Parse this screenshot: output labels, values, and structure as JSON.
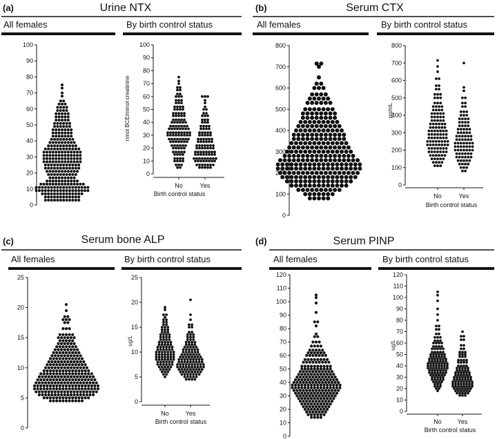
{
  "figure": {
    "panels": [
      {
        "letter": "(a)",
        "title": "Urine NTX",
        "left_header": "All females",
        "right_header": "By birth control status",
        "left_yticks": [
          "0",
          "10",
          "20",
          "30",
          "40",
          "50",
          "60",
          "70",
          "80",
          "90",
          "100"
        ],
        "right_yticks": [
          "0",
          "10",
          "20",
          "30",
          "40",
          "50",
          "60",
          "70",
          "80",
          "90",
          "100"
        ],
        "ylabel": "nmol BCE/mmol creatinine",
        "xlabel": "Birth control status",
        "categories": [
          "No",
          "Yes"
        ]
      },
      {
        "letter": "(b)",
        "title": "Serum CTX",
        "left_header": "All females",
        "right_header": "By birth control status",
        "left_yticks": [
          "0",
          "100",
          "200",
          "300",
          "400",
          "500",
          "600",
          "700",
          "800"
        ],
        "right_yticks": [
          "0",
          "100",
          "200",
          "300",
          "400",
          "500",
          "600",
          "700",
          "800"
        ],
        "ylabel": "pg/mL",
        "xlabel": "Birth control status",
        "categories": [
          "No",
          "Yes"
        ]
      },
      {
        "letter": "(c)",
        "title": "Serum bone ALP",
        "left_header": "All females",
        "right_header": "By birth control status",
        "left_yticks": [
          "0",
          "5",
          "10",
          "15",
          "20",
          "25"
        ],
        "right_yticks": [
          "0",
          "5",
          "10",
          "15",
          "20",
          "25"
        ],
        "ylabel": "ug/L",
        "xlabel": "Birth control status",
        "categories": [
          "No",
          "Yes"
        ]
      },
      {
        "letter": "(d)",
        "title": "Serum PINP",
        "left_header": "All females",
        "right_header": "By birth control status",
        "left_yticks": [
          "0",
          "10",
          "20",
          "30",
          "40",
          "50",
          "60",
          "70",
          "80",
          "90",
          "100",
          "110",
          "120"
        ],
        "right_yticks": [
          "0",
          "10",
          "20",
          "30",
          "40",
          "50",
          "60",
          "70",
          "80",
          "90",
          "100",
          "110",
          "120"
        ],
        "ylabel": "ug/L",
        "xlabel": "Birth control status",
        "categories": [
          "No",
          "Yes"
        ]
      }
    ]
  },
  "chart_data": [
    {
      "type": "scatter",
      "title": "Urine NTX",
      "subtitle": "All females",
      "ylabel": "",
      "ylim": [
        0,
        100
      ],
      "series": [
        {
          "values": [
            75,
            73,
            68,
            65,
            63,
            61,
            59,
            57,
            55,
            53,
            51,
            49,
            47,
            45,
            43,
            41,
            39,
            37,
            35,
            33,
            31,
            29,
            27,
            25,
            23,
            21,
            19,
            17,
            15,
            13,
            11,
            9,
            7,
            5,
            3
          ]
        }
      ],
      "distribution": {
        "bins": [
          75,
          73,
          70,
          68,
          65,
          63,
          61,
          59,
          57,
          55,
          53,
          51,
          49,
          47,
          45,
          43,
          41,
          39,
          37,
          35,
          33,
          31,
          29,
          27,
          25,
          23,
          21,
          19,
          17,
          15,
          13,
          11,
          9,
          7,
          5,
          3
        ],
        "counts": [
          1,
          1,
          1,
          1,
          2,
          3,
          4,
          4,
          5,
          5,
          5,
          6,
          6,
          7,
          7,
          7,
          8,
          9,
          10,
          12,
          13,
          13,
          13,
          13,
          12,
          12,
          11,
          10,
          9,
          11,
          15,
          18,
          18,
          14,
          12,
          12
        ]
      }
    },
    {
      "type": "scatter",
      "title": "Urine NTX",
      "subtitle": "By birth control status",
      "xlabel": "Birth control status",
      "ylabel": "nmol BCE/mmol creatinine",
      "ylim": [
        0,
        100
      ],
      "categories": [
        "No",
        "Yes"
      ],
      "distribution": [
        {
          "category": "No",
          "bins": [
            75,
            72,
            70,
            67,
            65,
            62,
            60,
            57,
            55,
            52,
            50,
            47,
            45,
            42,
            40,
            37,
            35,
            32,
            30,
            27,
            25,
            22,
            20,
            17,
            15,
            12,
            10,
            7,
            5
          ],
          "counts": [
            1,
            1,
            1,
            2,
            2,
            2,
            3,
            3,
            3,
            4,
            4,
            5,
            5,
            5,
            6,
            7,
            8,
            9,
            9,
            8,
            7,
            6,
            5,
            5,
            4,
            4,
            4,
            3,
            2
          ]
        },
        {
          "category": "Yes",
          "bins": [
            60,
            57,
            55,
            52,
            50,
            47,
            45,
            42,
            40,
            37,
            35,
            32,
            30,
            27,
            25,
            22,
            20,
            17,
            15,
            12,
            10,
            7,
            5
          ],
          "counts": [
            3,
            1,
            1,
            1,
            2,
            2,
            3,
            3,
            3,
            4,
            4,
            5,
            5,
            6,
            6,
            7,
            7,
            8,
            8,
            9,
            8,
            7,
            5
          ]
        }
      ]
    },
    {
      "type": "scatter",
      "title": "Serum CTX",
      "subtitle": "All females",
      "ylabel": "",
      "ylim": [
        0,
        800
      ],
      "distribution": {
        "bins": [
          715,
          700,
          650,
          620,
          600,
          570,
          550,
          530,
          500,
          480,
          460,
          440,
          420,
          400,
          380,
          360,
          340,
          320,
          300,
          280,
          260,
          240,
          220,
          200,
          180,
          160,
          140,
          120,
          100,
          80
        ],
        "counts": [
          2,
          1,
          1,
          2,
          3,
          4,
          5,
          6,
          7,
          8,
          8,
          9,
          10,
          11,
          12,
          12,
          13,
          14,
          15,
          16,
          18,
          19,
          19,
          18,
          17,
          15,
          13,
          10,
          7,
          5
        ]
      }
    },
    {
      "type": "scatter",
      "title": "Serum CTX",
      "subtitle": "By birth control status",
      "xlabel": "Birth control status",
      "ylabel": "pg/mL",
      "ylim": [
        0,
        800
      ],
      "categories": [
        "No",
        "Yes"
      ],
      "distribution": [
        {
          "category": "No",
          "bins": [
            715,
            680,
            650,
            610,
            570,
            550,
            520,
            500,
            470,
            450,
            430,
            410,
            390,
            370,
            350,
            330,
            310,
            290,
            270,
            250,
            230,
            210,
            190,
            170,
            150,
            130,
            110
          ],
          "counts": [
            1,
            1,
            1,
            2,
            2,
            2,
            3,
            3,
            3,
            4,
            4,
            5,
            5,
            5,
            6,
            6,
            7,
            7,
            7,
            8,
            8,
            7,
            7,
            6,
            5,
            4,
            3
          ]
        },
        {
          "category": "Yes",
          "bins": [
            700,
            560,
            540,
            500,
            470,
            450,
            420,
            400,
            380,
            360,
            340,
            320,
            300,
            280,
            260,
            240,
            220,
            200,
            180,
            160,
            140,
            120,
            100,
            80
          ],
          "counts": [
            1,
            1,
            1,
            2,
            2,
            2,
            3,
            3,
            4,
            4,
            4,
            5,
            5,
            6,
            6,
            7,
            7,
            7,
            6,
            6,
            5,
            4,
            3,
            2
          ]
        }
      ]
    },
    {
      "type": "scatter",
      "title": "Serum bone ALP",
      "subtitle": "All females",
      "ylabel": "",
      "ylim": [
        0,
        25
      ],
      "distribution": {
        "bins": [
          20.5,
          19.5,
          18.5,
          18,
          17.5,
          16.5,
          15.5,
          15,
          14.5,
          14,
          13.5,
          13,
          12.5,
          12,
          11.5,
          11,
          10.5,
          10,
          9.5,
          9,
          8.5,
          8,
          7.5,
          7,
          6.5,
          6,
          5.5,
          5,
          4.5
        ],
        "counts": [
          1,
          1,
          2,
          3,
          2,
          3,
          5,
          6,
          5,
          6,
          7,
          8,
          9,
          10,
          11,
          12,
          13,
          14,
          15,
          17,
          18,
          19,
          20,
          21,
          21,
          20,
          18,
          15,
          11
        ]
      }
    },
    {
      "type": "scatter",
      "title": "Serum bone ALP",
      "subtitle": "By birth control status",
      "xlabel": "Birth control status",
      "ylabel": "ug/L",
      "ylim": [
        0,
        25
      ],
      "categories": [
        "No",
        "Yes"
      ],
      "distribution": [
        {
          "category": "No",
          "bins": [
            19,
            18.5,
            17.5,
            17,
            16.5,
            16,
            15.5,
            15,
            14.5,
            14,
            13.5,
            13,
            12.5,
            12,
            11.5,
            11,
            10.5,
            10,
            9.5,
            9,
            8.5,
            8,
            7.5,
            7,
            6.5,
            6,
            5.5,
            5
          ],
          "counts": [
            1,
            1,
            2,
            1,
            2,
            2,
            2,
            3,
            3,
            3,
            4,
            4,
            4,
            5,
            5,
            6,
            6,
            7,
            7,
            7,
            7,
            6,
            6,
            5,
            4,
            3,
            2,
            1
          ]
        },
        {
          "category": "Yes",
          "bins": [
            20.5,
            17.5,
            16.5,
            15.5,
            15,
            14,
            13.5,
            13,
            12.5,
            12,
            11.5,
            11,
            10.5,
            10,
            9.5,
            9,
            8.5,
            8,
            7.5,
            7,
            6.5,
            6,
            5.5,
            5,
            4.5
          ],
          "counts": [
            1,
            1,
            1,
            2,
            2,
            2,
            3,
            3,
            3,
            4,
            4,
            5,
            6,
            6,
            7,
            8,
            9,
            9,
            10,
            10,
            9,
            8,
            7,
            5,
            4
          ]
        }
      ]
    },
    {
      "type": "scatter",
      "title": "Serum PINP",
      "subtitle": "All females",
      "ylabel": "",
      "ylim": [
        0,
        120
      ],
      "distribution": {
        "bins": [
          105,
          103,
          99,
          92,
          85,
          82,
          76,
          74,
          70,
          67,
          64,
          62,
          60,
          57,
          55,
          52,
          50,
          48,
          46,
          44,
          42,
          40,
          38,
          36,
          34,
          32,
          30,
          28,
          26,
          24,
          22,
          20,
          18,
          16,
          14
        ],
        "counts": [
          1,
          1,
          1,
          1,
          2,
          1,
          1,
          2,
          3,
          4,
          5,
          6,
          7,
          8,
          9,
          10,
          10,
          11,
          12,
          13,
          14,
          15,
          16,
          16,
          15,
          14,
          13,
          12,
          11,
          10,
          9,
          8,
          7,
          6,
          4
        ]
      }
    },
    {
      "type": "scatter",
      "title": "Serum PINP",
      "subtitle": "By birth control status",
      "xlabel": "Birth control status",
      "ylabel": "ug/L",
      "ylim": [
        0,
        120
      ],
      "categories": [
        "No",
        "Yes"
      ],
      "distribution": [
        {
          "category": "No",
          "bins": [
            105,
            102,
            97,
            90,
            85,
            80,
            75,
            72,
            68,
            65,
            62,
            60,
            57,
            55,
            52,
            50,
            48,
            46,
            44,
            42,
            40,
            38,
            36,
            34,
            32,
            30,
            28,
            26,
            24,
            22,
            20,
            18
          ],
          "counts": [
            1,
            1,
            1,
            1,
            1,
            1,
            2,
            2,
            2,
            3,
            3,
            4,
            4,
            5,
            5,
            6,
            6,
            7,
            7,
            8,
            8,
            8,
            7,
            7,
            6,
            5,
            5,
            4,
            3,
            3,
            2,
            1
          ]
        },
        {
          "category": "Yes",
          "bins": [
            70,
            66,
            63,
            58,
            55,
            52,
            50,
            48,
            45,
            43,
            40,
            38,
            36,
            34,
            32,
            30,
            28,
            26,
            24,
            22,
            20,
            18,
            16,
            14
          ],
          "counts": [
            1,
            2,
            2,
            2,
            2,
            3,
            3,
            3,
            4,
            4,
            4,
            5,
            5,
            6,
            6,
            7,
            7,
            8,
            8,
            8,
            7,
            6,
            5,
            3
          ]
        }
      ]
    }
  ]
}
